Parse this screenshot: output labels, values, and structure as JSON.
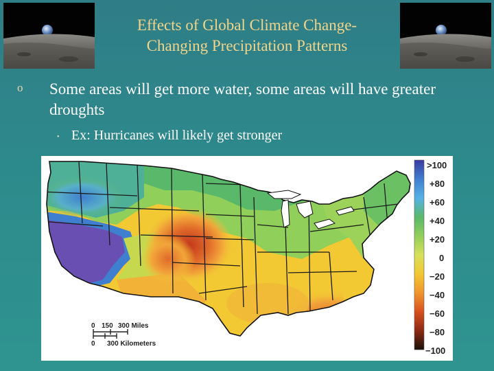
{
  "slide": {
    "title_line1": "Effects of Global Climate Change-",
    "title_line2": "Changing Precipitation Patterns",
    "bullet_main": "Some areas will get more water, some areas will have greater droughts",
    "bullet_sub": "Ex: Hurricanes will likely get stronger"
  },
  "map": {
    "legend": [
      ">100",
      "+80",
      "+60",
      "+40",
      "+20",
      "0",
      "−20",
      "−40",
      "−60",
      "−80",
      "−100"
    ],
    "scale_miles": [
      "0",
      "150",
      "300 Miles"
    ],
    "scale_km": [
      "0",
      "300 Kilometers"
    ],
    "colors": {
      "wet_strong": "#6a4fb3",
      "wet": "#3f7fd0",
      "moist": "#5ab86a",
      "normal": "#9cd25a",
      "dry": "#f2c833",
      "very_dry": "#e06a2a",
      "extreme_dry": "#c2361c"
    }
  },
  "icons": {
    "corner_left": "earthrise-image",
    "corner_right": "earthrise-image"
  }
}
